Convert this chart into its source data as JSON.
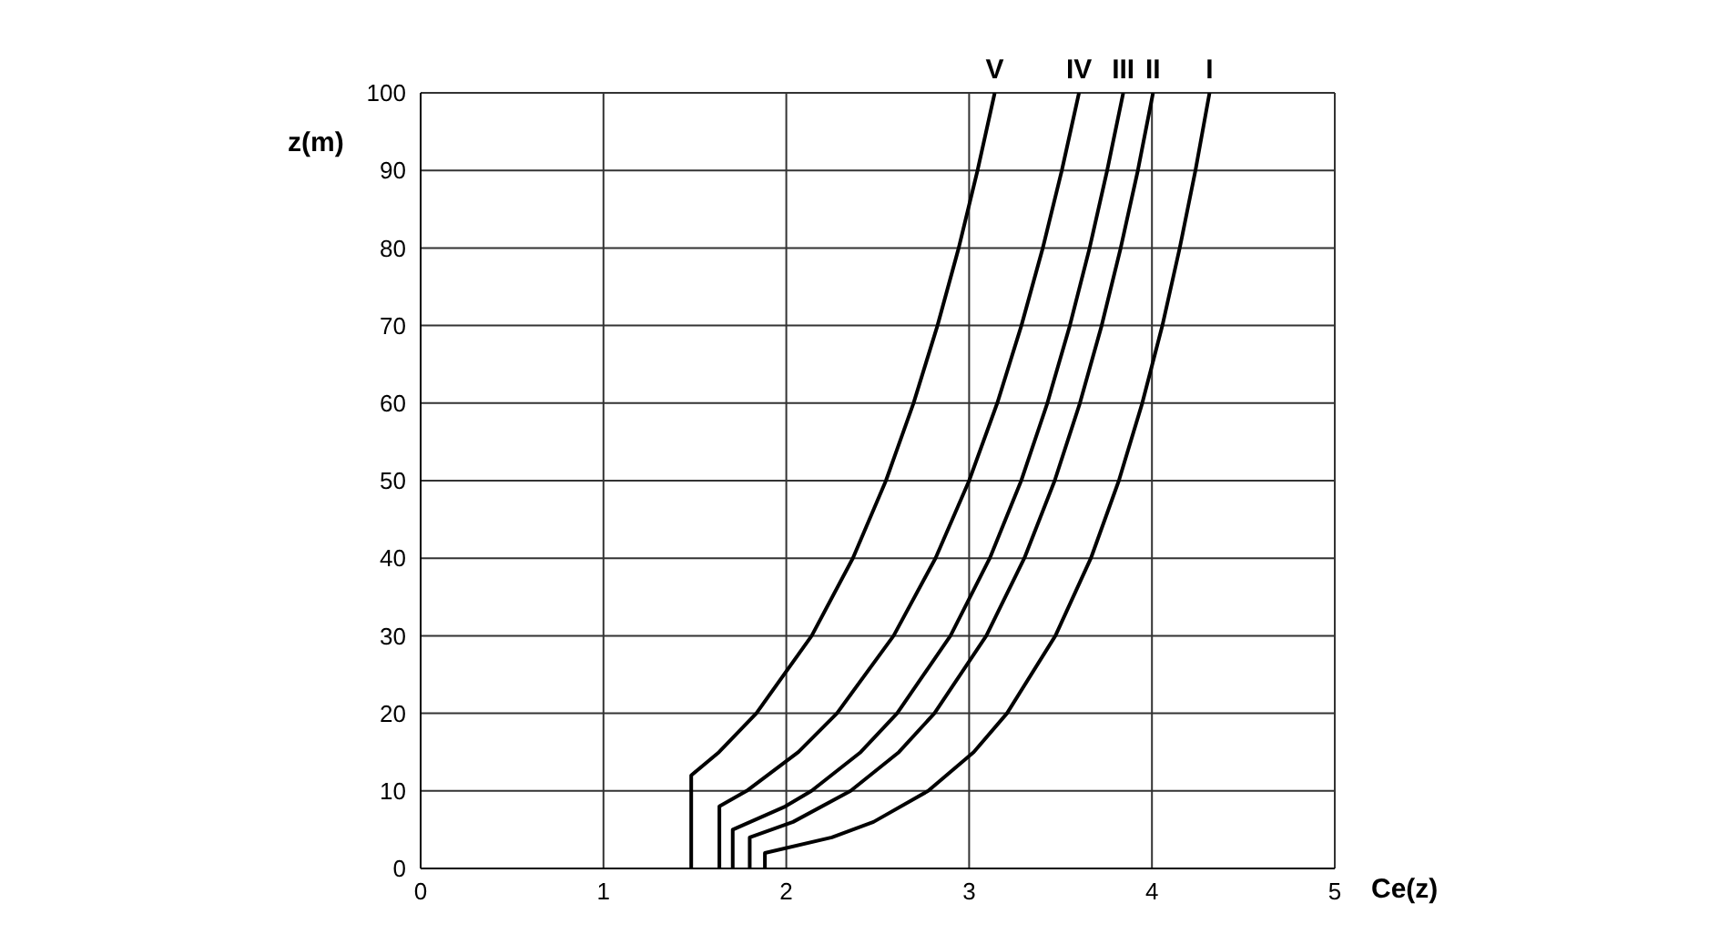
{
  "chart_data": {
    "type": "line",
    "xlabel": "Ce(z)",
    "ylabel": "z(m)",
    "xlim": [
      0,
      5
    ],
    "xticks": [
      0,
      1,
      2,
      3,
      4,
      5
    ],
    "ylim": [
      0,
      100
    ],
    "yticks": [
      0,
      10,
      20,
      30,
      40,
      50,
      60,
      70,
      80,
      90,
      100
    ],
    "grid": true,
    "legend": false,
    "marker": "none",
    "line_style": "solid",
    "series": [
      {
        "name": "I",
        "color": "#000000",
        "x": [
          1.883,
          1.883,
          2.249,
          2.477,
          2.776,
          3.025,
          3.207,
          3.472,
          3.666,
          3.819,
          3.947,
          4.057,
          4.152,
          4.238,
          4.315
        ],
        "values": [
          0,
          2,
          4,
          6,
          10,
          15,
          20,
          30,
          40,
          50,
          60,
          70,
          80,
          90,
          100
        ]
      },
      {
        "name": "II",
        "color": "#000000",
        "x": [
          1.8,
          1.8,
          2.037,
          2.352,
          2.616,
          2.81,
          3.094,
          3.302,
          3.468,
          3.606,
          3.725,
          3.829,
          3.923,
          4.006
        ],
        "values": [
          0,
          4,
          6,
          10,
          15,
          20,
          30,
          40,
          50,
          60,
          70,
          80,
          90,
          100
        ]
      },
      {
        "name": "III",
        "color": "#000000",
        "x": [
          1.707,
          1.707,
          1.995,
          2.138,
          2.407,
          2.606,
          2.898,
          3.113,
          3.285,
          3.428,
          3.551,
          3.659,
          3.755,
          3.843
        ],
        "values": [
          0,
          5,
          8,
          10,
          15,
          20,
          30,
          40,
          50,
          60,
          70,
          80,
          90,
          100
        ]
      },
      {
        "name": "IV",
        "color": "#000000",
        "x": [
          1.634,
          1.634,
          1.783,
          2.066,
          2.277,
          2.587,
          2.816,
          3.0,
          3.154,
          3.286,
          3.403,
          3.507,
          3.601
        ],
        "values": [
          0,
          8,
          10,
          15,
          20,
          30,
          40,
          50,
          60,
          70,
          80,
          90,
          100
        ]
      },
      {
        "name": "V",
        "color": "#000000",
        "x": [
          1.48,
          1.48,
          1.632,
          1.836,
          2.139,
          2.364,
          2.545,
          2.696,
          2.827,
          2.943,
          3.046,
          3.14
        ],
        "values": [
          0,
          12,
          15,
          20,
          30,
          40,
          50,
          60,
          70,
          80,
          90,
          100
        ]
      }
    ]
  }
}
